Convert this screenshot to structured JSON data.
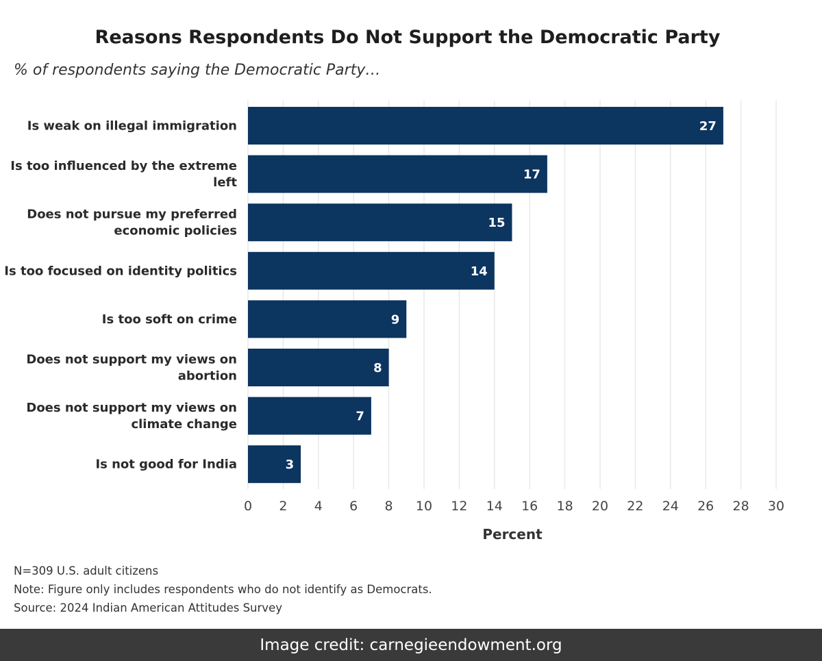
{
  "chart_data": {
    "type": "bar",
    "orientation": "horizontal",
    "title": "Reasons Respondents Do Not Support the Democratic Party",
    "subtitle": "% of respondents saying the Democratic Party…",
    "categories": [
      [
        "Is weak on illegal immigration"
      ],
      [
        "Is too influenced by the extreme",
        "left"
      ],
      [
        "Does not pursue my preferred",
        "economic policies"
      ],
      [
        "Is too focused on identity politics"
      ],
      [
        "Is too soft on crime"
      ],
      [
        "Does not support my views on",
        "abortion"
      ],
      [
        "Does not support my views on",
        "climate change"
      ],
      [
        "Is not good for India"
      ]
    ],
    "values": [
      27,
      17,
      15,
      14,
      9,
      8,
      7,
      3
    ],
    "xlabel": "Percent",
    "ylabel": "",
    "xlim": [
      0,
      30
    ],
    "xticks": [
      0,
      2,
      4,
      6,
      8,
      10,
      12,
      14,
      16,
      18,
      20,
      22,
      24,
      26,
      28,
      30
    ],
    "grid": true,
    "bar_color": "#0c3560",
    "value_label_color": "#ffffff"
  },
  "notes": {
    "sample": "N=309 U.S. adult citizens",
    "note": "Note: Figure only includes respondents who do not identify as Democrats.",
    "source": "Source: 2024 Indian American Attitudes Survey"
  },
  "credit": "Image credit: carnegieendowment.org"
}
